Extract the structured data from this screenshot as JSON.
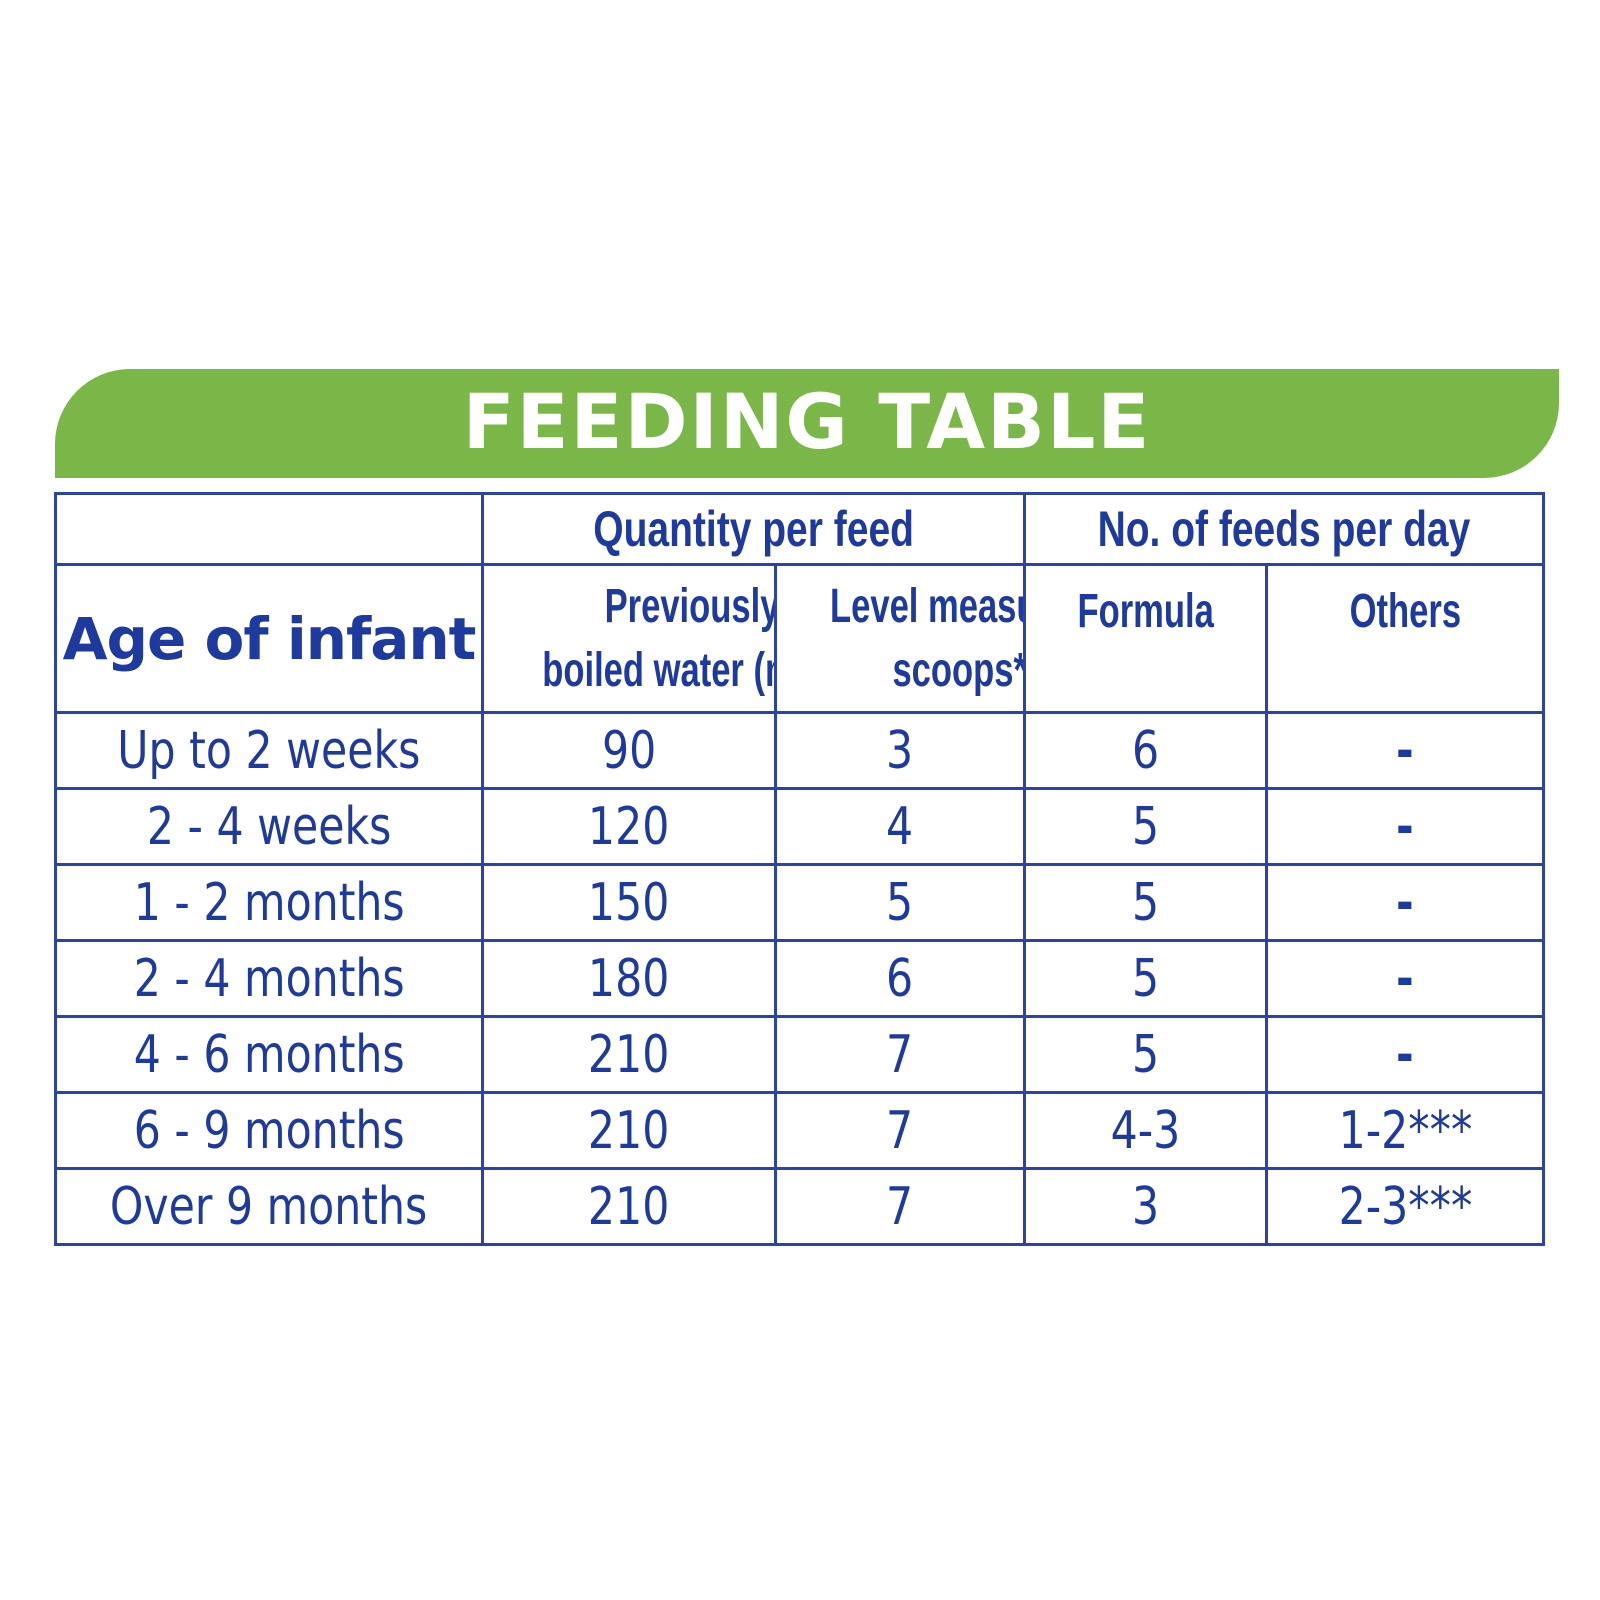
{
  "title": "FEEDING TABLE",
  "colors": {
    "banner": "#7ab648",
    "text": "#1f3a9e",
    "border": "#2c44a8"
  },
  "headers": {
    "group_quantity": "Quantity per feed",
    "group_feeds": "No. of feeds per day",
    "age": "Age of infant",
    "water": [
      "Previously",
      "boiled water (mL)*"
    ],
    "scoops": [
      "Level measuring",
      "scoops**"
    ],
    "formula": "Formula",
    "others": "Others"
  },
  "rows": [
    {
      "age": "Up to 2 weeks",
      "water": "90",
      "scoops": "3",
      "formula": "6",
      "others": "-"
    },
    {
      "age": "2 - 4 weeks",
      "water": "120",
      "scoops": "4",
      "formula": "5",
      "others": "-"
    },
    {
      "age": "1 - 2 months",
      "water": "150",
      "scoops": "5",
      "formula": "5",
      "others": "-"
    },
    {
      "age": "2 - 4 months",
      "water": "180",
      "scoops": "6",
      "formula": "5",
      "others": "-"
    },
    {
      "age": "4 - 6 months",
      "water": "210",
      "scoops": "7",
      "formula": "5",
      "others": "-"
    },
    {
      "age": "6 - 9 months",
      "water": "210",
      "scoops": "7",
      "formula": "4-3",
      "others": "1-2***"
    },
    {
      "age": "Over 9 months",
      "water": "210",
      "scoops": "7",
      "formula": "3",
      "others": "2-3***"
    }
  ]
}
